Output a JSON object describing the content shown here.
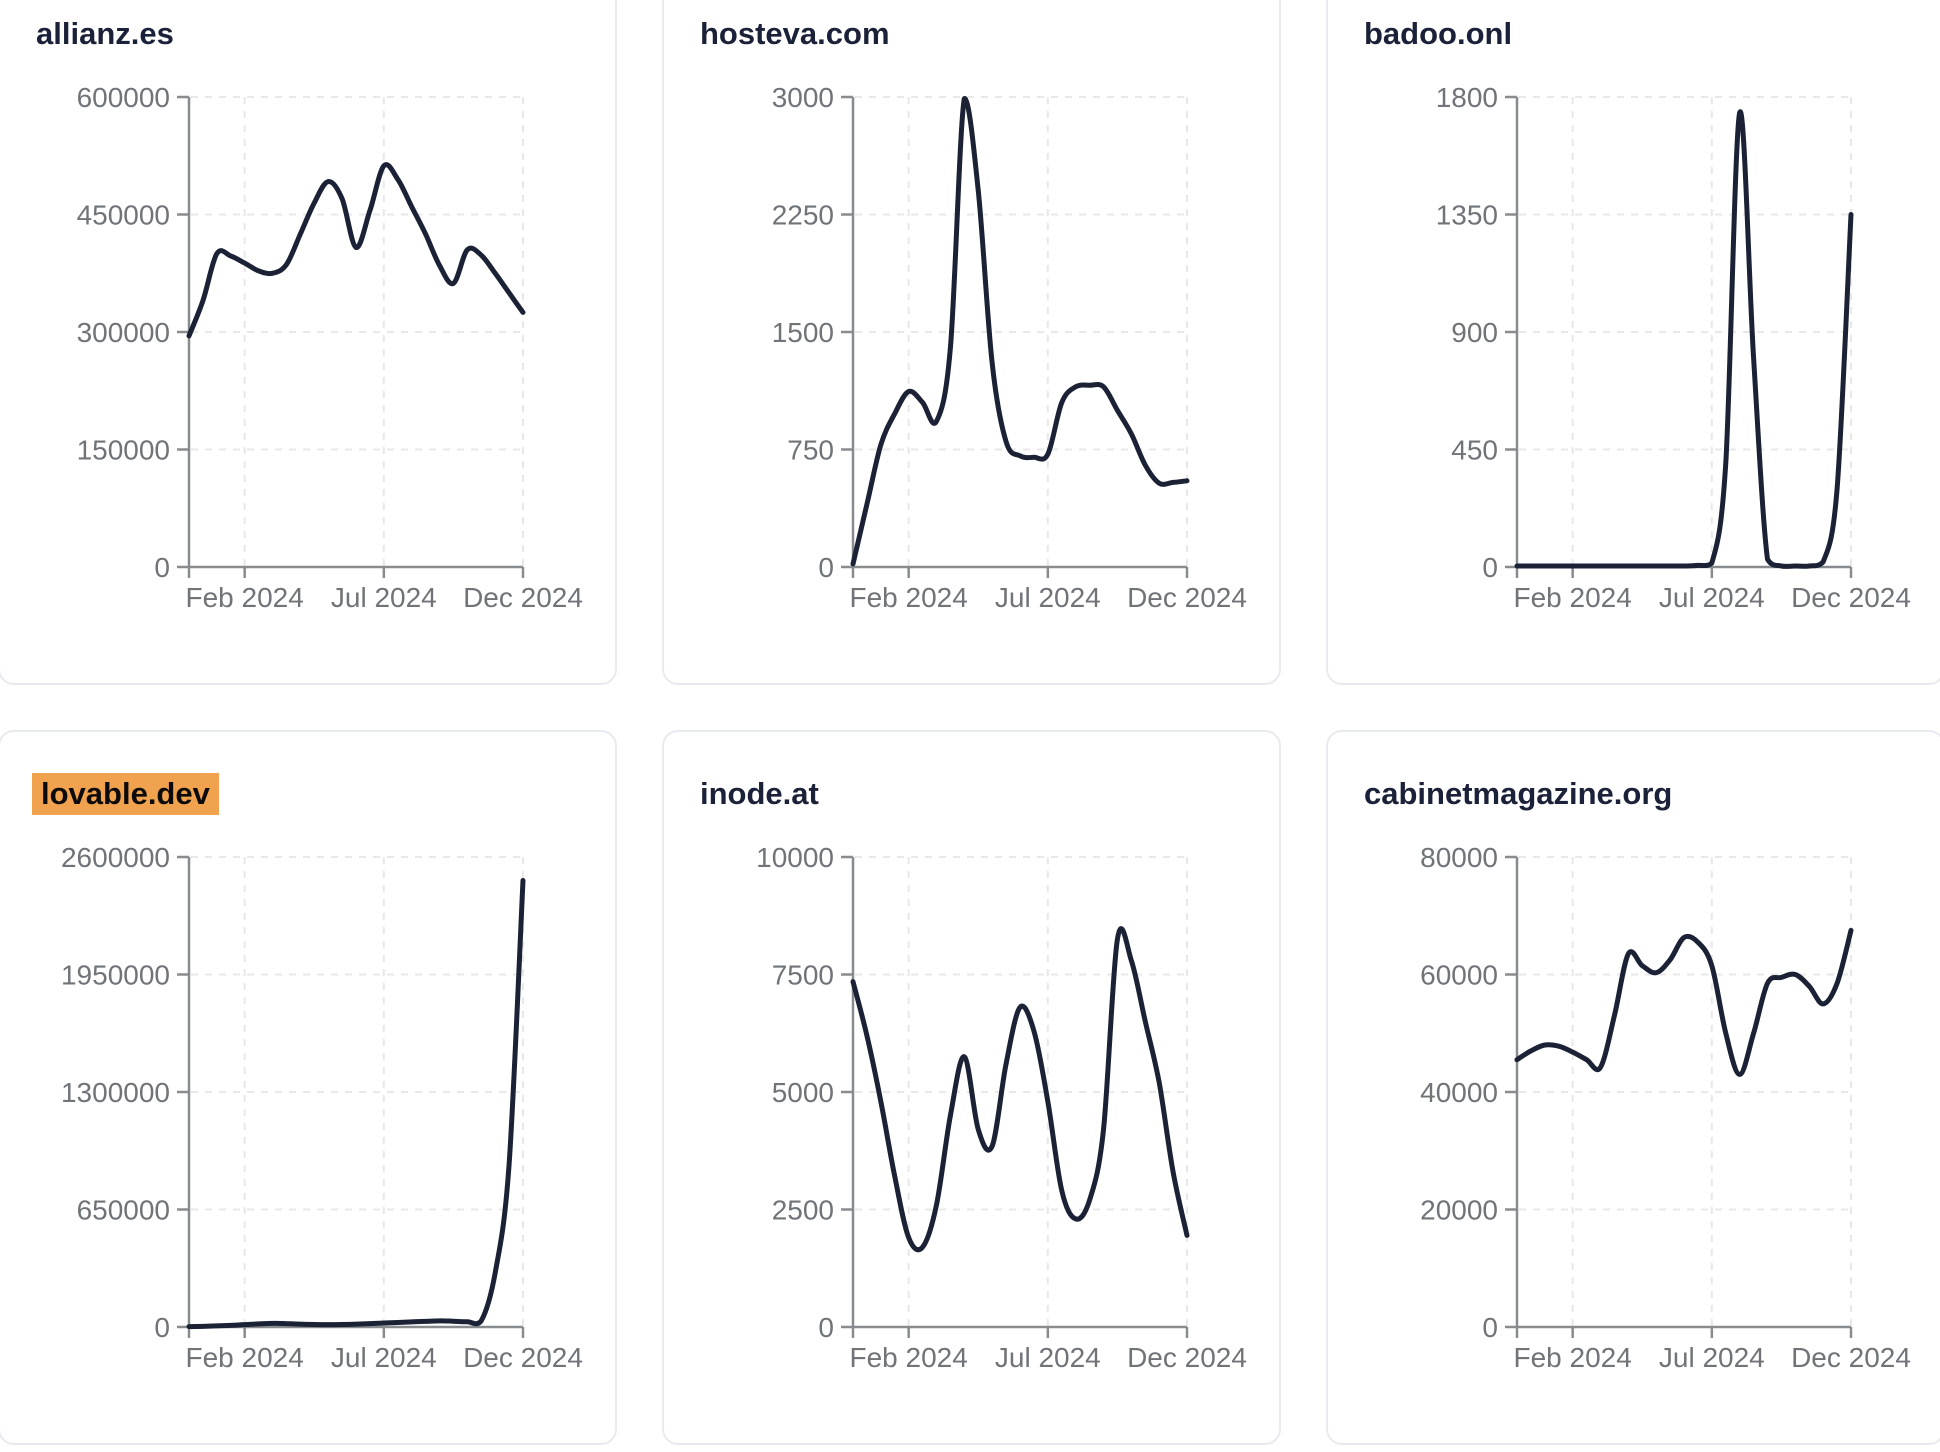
{
  "page": {
    "background": "#ffffff"
  },
  "colors": {
    "line": "#1b2236",
    "title_text": "#1a2138",
    "highlight_bg": "#f1a24e",
    "highlight_text": "#0b0b0b",
    "axis_line": "#888c8f",
    "tick_text": "#707479",
    "gridline": "#e8e8e8",
    "card_border": "#e7ebf0",
    "card_bg": "#ffffff"
  },
  "chart_data": [
    {
      "type": "line",
      "title": "allianz.es",
      "highlighted": false,
      "ylim": [
        0,
        600000
      ],
      "y_ticks": [
        0,
        150000,
        300000,
        450000,
        600000
      ],
      "x_ticks": [
        {
          "label": "Feb 2024",
          "month": 2
        },
        {
          "label": "Jul 2024",
          "month": 7
        },
        {
          "label": "Dec 2024",
          "month": 12
        }
      ],
      "x_domain_months": [
        0,
        12
      ],
      "grid": "dashed",
      "legend": "none",
      "values": [
        295000,
        340000,
        400000,
        397000,
        388000,
        378000,
        375000,
        386000,
        425000,
        465000,
        492000,
        470000,
        408000,
        455000,
        512000,
        495000,
        460000,
        425000,
        385000,
        362000,
        405000,
        398000,
        375000,
        350000,
        325000
      ]
    },
    {
      "type": "line",
      "title": "hosteva.com",
      "highlighted": false,
      "ylim": [
        0,
        3000
      ],
      "y_ticks": [
        0,
        750,
        1500,
        2250,
        3000
      ],
      "x_ticks": [
        {
          "label": "Feb 2024",
          "month": 2
        },
        {
          "label": "Jul 2024",
          "month": 7
        },
        {
          "label": "Dec 2024",
          "month": 12
        }
      ],
      "x_domain_months": [
        0,
        12
      ],
      "grid": "dashed",
      "legend": "none",
      "values": [
        20,
        400,
        780,
        980,
        1120,
        1050,
        930,
        1400,
        2990,
        2400,
        1300,
        800,
        710,
        700,
        720,
        1050,
        1150,
        1160,
        1150,
        1000,
        850,
        650,
        535,
        540,
        550
      ]
    },
    {
      "type": "line",
      "title": "badoo.onl",
      "highlighted": false,
      "ylim": [
        0,
        1800
      ],
      "y_ticks": [
        0,
        450,
        900,
        1350,
        1800
      ],
      "x_ticks": [
        {
          "label": "Feb 2024",
          "month": 2
        },
        {
          "label": "Jul 2024",
          "month": 7
        },
        {
          "label": "Dec 2024",
          "month": 12
        }
      ],
      "x_domain_months": [
        0,
        12
      ],
      "grid": "dashed",
      "legend": "none",
      "values": [
        4,
        4,
        4,
        4,
        4,
        4,
        4,
        4,
        4,
        4,
        4,
        4,
        4,
        6,
        15,
        400,
        1740,
        800,
        30,
        4,
        4,
        4,
        20,
        300,
        1350
      ]
    },
    {
      "type": "line",
      "title": "lovable.dev",
      "highlighted": true,
      "ylim": [
        0,
        2600000
      ],
      "y_ticks": [
        0,
        650000,
        1300000,
        1950000,
        2600000
      ],
      "x_ticks": [
        {
          "label": "Feb 2024",
          "month": 2
        },
        {
          "label": "Jul 2024",
          "month": 7
        },
        {
          "label": "Dec 2024",
          "month": 12
        }
      ],
      "x_domain_months": [
        0,
        12
      ],
      "grid": "dashed",
      "legend": "none",
      "values": [
        2000,
        3500,
        6000,
        9000,
        13000,
        17000,
        20000,
        19000,
        16000,
        14000,
        13000,
        14000,
        16000,
        19000,
        22000,
        25000,
        28000,
        31000,
        34000,
        32000,
        29000,
        35000,
        300000,
        900000,
        2470000
      ]
    },
    {
      "type": "line",
      "title": "inode.at",
      "highlighted": false,
      "ylim": [
        0,
        10000
      ],
      "y_ticks": [
        0,
        2500,
        5000,
        7500,
        10000
      ],
      "x_ticks": [
        {
          "label": "Feb 2024",
          "month": 2
        },
        {
          "label": "Jul 2024",
          "month": 7
        },
        {
          "label": "Dec 2024",
          "month": 12
        }
      ],
      "x_domain_months": [
        0,
        12
      ],
      "grid": "dashed",
      "legend": "none",
      "values": [
        7350,
        6200,
        4800,
        3200,
        1900,
        1700,
        2600,
        4500,
        5750,
        4200,
        3850,
        5600,
        6800,
        6300,
        4800,
        2900,
        2300,
        2700,
        4200,
        8250,
        7800,
        6500,
        5200,
        3300,
        1950
      ]
    },
    {
      "type": "line",
      "title": "cabinetmagazine.org",
      "highlighted": false,
      "ylim": [
        0,
        80000
      ],
      "y_ticks": [
        0,
        20000,
        40000,
        60000,
        80000
      ],
      "x_ticks": [
        {
          "label": "Feb 2024",
          "month": 2
        },
        {
          "label": "Jul 2024",
          "month": 7
        },
        {
          "label": "Dec 2024",
          "month": 12
        }
      ],
      "x_domain_months": [
        0,
        12
      ],
      "grid": "dashed",
      "legend": "none",
      "values": [
        45500,
        47000,
        48000,
        47800,
        46800,
        45500,
        44200,
        53000,
        63500,
        61500,
        60300,
        62500,
        66300,
        65500,
        61500,
        50000,
        43000,
        50000,
        58500,
        59500,
        60000,
        58000,
        55000,
        58500,
        67500
      ]
    }
  ]
}
